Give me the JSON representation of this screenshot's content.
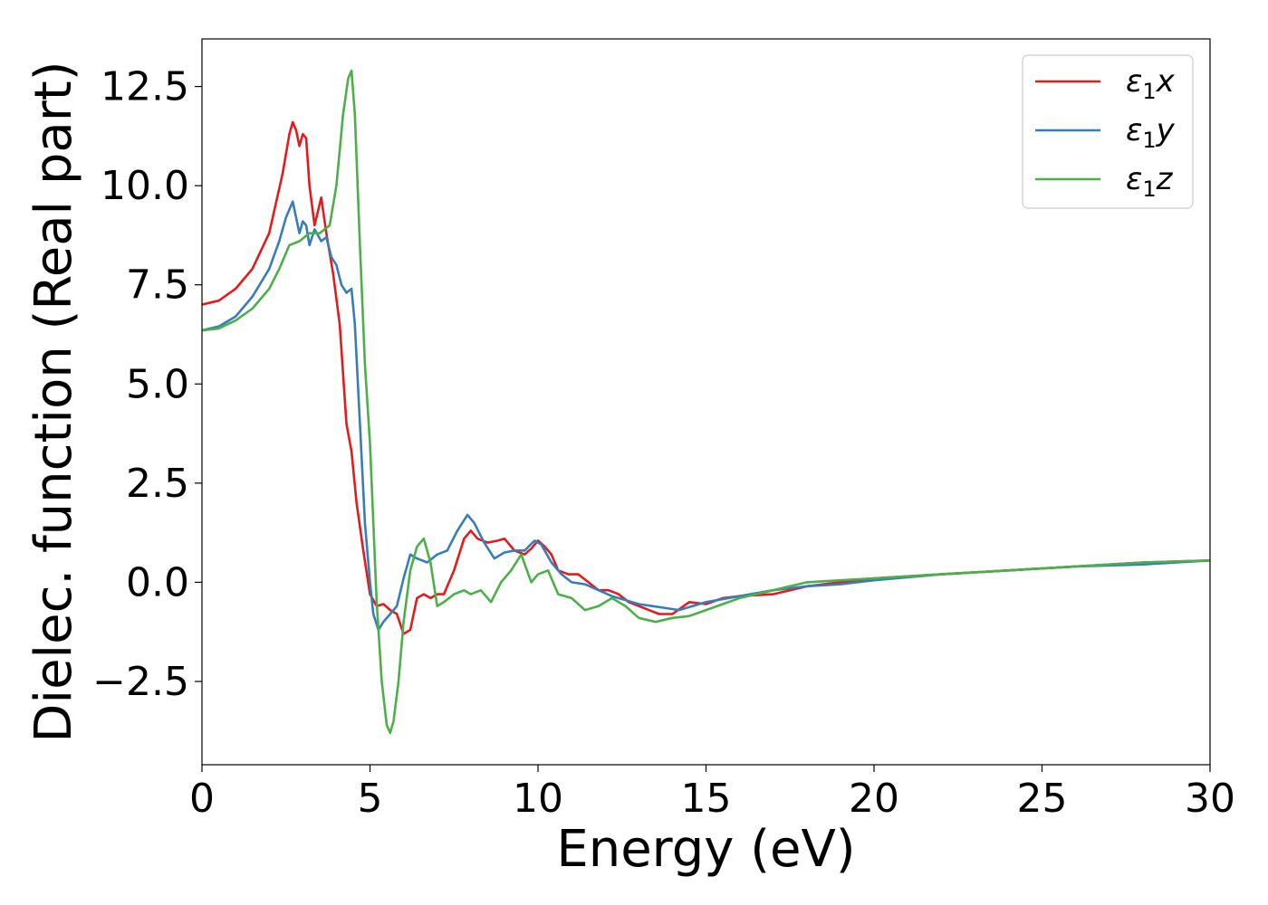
{
  "chart_data": {
    "type": "line",
    "xlabel": "Energy (eV)",
    "ylabel": "Dielec. function (Real part)",
    "xlim": [
      0,
      30
    ],
    "ylim": [
      -4.6,
      13.7
    ],
    "xticks": [
      0,
      5,
      10,
      15,
      20,
      25,
      30
    ],
    "xtick_labels": [
      "0",
      "5",
      "10",
      "15",
      "20",
      "25",
      "30"
    ],
    "yticks": [
      -2.5,
      0.0,
      2.5,
      5.0,
      7.5,
      10.0,
      12.5
    ],
    "ytick_labels": [
      "−2.5",
      "0.0",
      "2.5",
      "5.0",
      "7.5",
      "10.0",
      "12.5"
    ],
    "grid": false,
    "legend_position": "top-right",
    "series": [
      {
        "name": "ε₁x",
        "legend_base": "ε",
        "legend_sub": "1",
        "legend_suffix": "x",
        "color": "#e41a1c",
        "x": [
          0,
          0.5,
          1.0,
          1.5,
          2.0,
          2.4,
          2.6,
          2.7,
          2.8,
          2.9,
          3.0,
          3.1,
          3.2,
          3.35,
          3.55,
          3.7,
          3.9,
          4.1,
          4.3,
          4.45,
          4.6,
          4.8,
          5.0,
          5.2,
          5.4,
          5.6,
          5.8,
          6.0,
          6.2,
          6.4,
          6.6,
          6.8,
          7.0,
          7.2,
          7.5,
          7.8,
          8.0,
          8.2,
          8.5,
          8.8,
          9.0,
          9.3,
          9.6,
          9.8,
          10.0,
          10.2,
          10.4,
          10.6,
          10.9,
          11.2,
          11.5,
          11.8,
          12.1,
          12.4,
          12.7,
          13.0,
          13.3,
          13.6,
          14.0,
          14.5,
          15.0,
          15.5,
          16.0,
          17.0,
          18.0,
          19.0,
          20.0,
          22.0,
          24.0,
          26.0,
          28.0,
          30.0
        ],
        "y": [
          7.0,
          7.1,
          7.4,
          7.9,
          8.8,
          10.3,
          11.3,
          11.6,
          11.4,
          11.0,
          11.3,
          11.2,
          10.0,
          9.0,
          9.7,
          8.8,
          7.8,
          6.5,
          4.0,
          3.3,
          2.0,
          0.8,
          -0.3,
          -0.6,
          -0.55,
          -0.7,
          -0.8,
          -1.3,
          -1.2,
          -0.4,
          -0.3,
          -0.4,
          -0.3,
          -0.3,
          0.3,
          1.1,
          1.3,
          1.1,
          1.0,
          1.05,
          1.1,
          0.8,
          0.7,
          0.85,
          1.05,
          0.9,
          0.7,
          0.3,
          0.2,
          0.2,
          0.0,
          -0.2,
          -0.2,
          -0.3,
          -0.5,
          -0.6,
          -0.7,
          -0.8,
          -0.8,
          -0.5,
          -0.55,
          -0.4,
          -0.35,
          -0.3,
          -0.1,
          0.0,
          0.1,
          0.2,
          0.3,
          0.4,
          0.5,
          0.55
        ]
      },
      {
        "name": "ε₁y",
        "legend_base": "ε",
        "legend_sub": "1",
        "legend_suffix": "y",
        "color": "#377eb8",
        "x": [
          0,
          0.5,
          1.0,
          1.5,
          2.0,
          2.3,
          2.5,
          2.7,
          2.8,
          2.9,
          3.0,
          3.1,
          3.2,
          3.35,
          3.55,
          3.7,
          3.85,
          4.0,
          4.15,
          4.3,
          4.45,
          4.55,
          4.7,
          4.85,
          5.0,
          5.1,
          5.25,
          5.4,
          5.6,
          5.8,
          6.0,
          6.2,
          6.4,
          6.7,
          7.0,
          7.3,
          7.6,
          7.9,
          8.1,
          8.4,
          8.7,
          9.0,
          9.3,
          9.6,
          9.9,
          10.1,
          10.4,
          10.7,
          11.0,
          11.4,
          11.8,
          12.2,
          12.6,
          13.0,
          13.4,
          13.8,
          14.2,
          14.6,
          15.0,
          16.0,
          17.0,
          18.0,
          19.0,
          20.0,
          22.0,
          24.0,
          26.0,
          28.0,
          30.0
        ],
        "y": [
          6.35,
          6.45,
          6.7,
          7.2,
          7.9,
          8.6,
          9.2,
          9.6,
          9.2,
          8.8,
          9.1,
          9.0,
          8.5,
          8.9,
          8.6,
          8.7,
          8.2,
          8.0,
          7.5,
          7.3,
          7.4,
          6.5,
          4.0,
          1.5,
          0.0,
          -0.8,
          -1.2,
          -1.0,
          -0.8,
          -0.6,
          0.1,
          0.7,
          0.6,
          0.5,
          0.7,
          0.8,
          1.3,
          1.7,
          1.5,
          1.0,
          0.6,
          0.75,
          0.8,
          0.8,
          1.05,
          0.95,
          0.5,
          0.2,
          0.0,
          -0.05,
          -0.2,
          -0.35,
          -0.45,
          -0.55,
          -0.6,
          -0.65,
          -0.7,
          -0.6,
          -0.5,
          -0.35,
          -0.2,
          -0.1,
          -0.05,
          0.05,
          0.2,
          0.3,
          0.4,
          0.45,
          0.55
        ]
      },
      {
        "name": "ε₁z",
        "legend_base": "ε",
        "legend_sub": "1",
        "legend_suffix": "z",
        "color": "#4daf4a",
        "x": [
          0,
          0.5,
          1.0,
          1.5,
          2.0,
          2.3,
          2.6,
          2.9,
          3.2,
          3.5,
          3.8,
          4.0,
          4.2,
          4.35,
          4.45,
          4.55,
          4.7,
          4.85,
          5.0,
          5.1,
          5.2,
          5.35,
          5.5,
          5.6,
          5.7,
          5.85,
          6.0,
          6.2,
          6.4,
          6.6,
          6.8,
          7.0,
          7.2,
          7.5,
          7.8,
          8.0,
          8.3,
          8.6,
          8.9,
          9.2,
          9.5,
          9.8,
          10.0,
          10.3,
          10.6,
          11.0,
          11.4,
          11.8,
          12.2,
          12.6,
          13.0,
          13.5,
          14.0,
          14.5,
          15.0,
          15.5,
          16.0,
          17.0,
          18.0,
          19.0,
          20.0,
          22.0,
          24.0,
          26.0,
          28.0,
          30.0
        ],
        "y": [
          6.35,
          6.4,
          6.6,
          6.9,
          7.4,
          7.9,
          8.5,
          8.6,
          8.8,
          8.8,
          9.0,
          10.0,
          11.8,
          12.7,
          12.9,
          11.8,
          8.5,
          5.5,
          3.5,
          1.5,
          -0.5,
          -2.5,
          -3.6,
          -3.8,
          -3.5,
          -2.5,
          -1.0,
          0.3,
          0.9,
          1.1,
          0.5,
          -0.6,
          -0.5,
          -0.3,
          -0.2,
          -0.3,
          -0.2,
          -0.5,
          0.0,
          0.3,
          0.7,
          0.0,
          0.2,
          0.3,
          -0.3,
          -0.4,
          -0.7,
          -0.6,
          -0.4,
          -0.6,
          -0.9,
          -1.0,
          -0.9,
          -0.85,
          -0.7,
          -0.55,
          -0.4,
          -0.2,
          0.0,
          0.05,
          0.1,
          0.2,
          0.3,
          0.4,
          0.5,
          0.55
        ]
      }
    ]
  }
}
